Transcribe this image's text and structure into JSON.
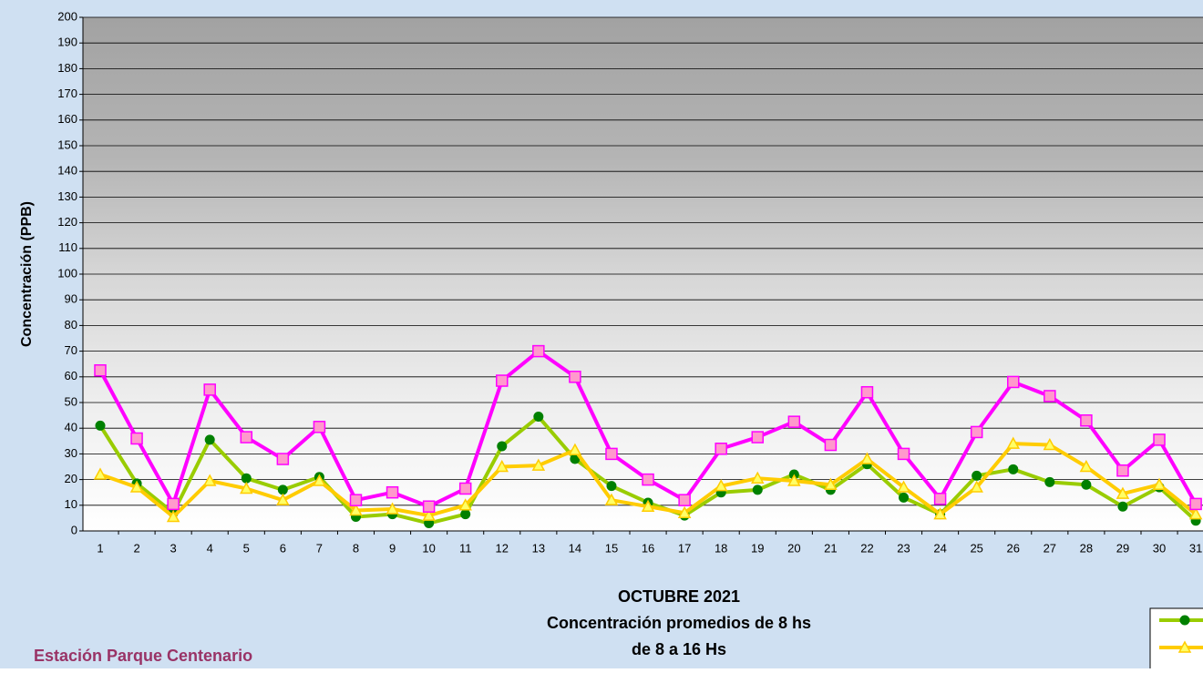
{
  "chart_data": {
    "type": "line",
    "title": [
      "OCTUBRE 2021",
      "Concentración promedios de 8 hs",
      "de 8 a 16 Hs"
    ],
    "subtitle": "Estación Parque Centenario",
    "y_label": "Concentración (PPB)",
    "categories": [
      "1",
      "2",
      "3",
      "4",
      "5",
      "6",
      "7",
      "8",
      "9",
      "10",
      "11",
      "12",
      "13",
      "14",
      "15",
      "16",
      "17",
      "18",
      "19",
      "20",
      "21",
      "22",
      "23",
      "24",
      "25",
      "26",
      "27",
      "28",
      "29",
      "30",
      "31"
    ],
    "series": [
      {
        "color": "#99cc00",
        "marker_color": "#008000",
        "marker": "circle",
        "values": [
          41,
          18.5,
          7,
          35.5,
          20.5,
          16,
          21,
          5.5,
          6.5,
          3,
          6.5,
          33,
          44.5,
          28,
          17.5,
          11,
          6,
          15,
          16,
          22,
          16,
          26,
          13,
          6.5,
          21.5,
          24,
          19,
          18,
          9.5,
          17,
          4
        ]
      },
      {
        "color": "#ffcc00",
        "marker_color": "#ffff66",
        "marker": "triangle",
        "values": [
          22,
          17,
          5.5,
          19.5,
          16.5,
          12,
          19.5,
          8,
          8.5,
          6,
          10,
          25,
          25.5,
          31.5,
          12,
          9.5,
          7,
          17.5,
          20.5,
          19.5,
          18,
          28,
          17,
          6.5,
          17,
          34,
          33.5,
          25,
          14.5,
          18,
          6.5
        ]
      },
      {
        "color": "#ff00ff",
        "marker_color": "#ff99cc",
        "marker": "square",
        "values": [
          62.5,
          36,
          10.5,
          55,
          36.5,
          28,
          40.5,
          12,
          15,
          9.5,
          16.5,
          58.5,
          70,
          60,
          30,
          20,
          12,
          32,
          36.5,
          42.5,
          33.5,
          54,
          30,
          12.5,
          38.5,
          58,
          52.5,
          43,
          23.5,
          35.5,
          10.5
        ]
      }
    ],
    "ylim": [
      0,
      200
    ],
    "yticks": [
      0,
      10,
      20,
      30,
      40,
      50,
      60,
      70,
      80,
      90,
      100,
      110,
      120,
      130,
      140,
      150,
      160,
      170,
      180,
      190,
      200
    ],
    "grid": true
  }
}
